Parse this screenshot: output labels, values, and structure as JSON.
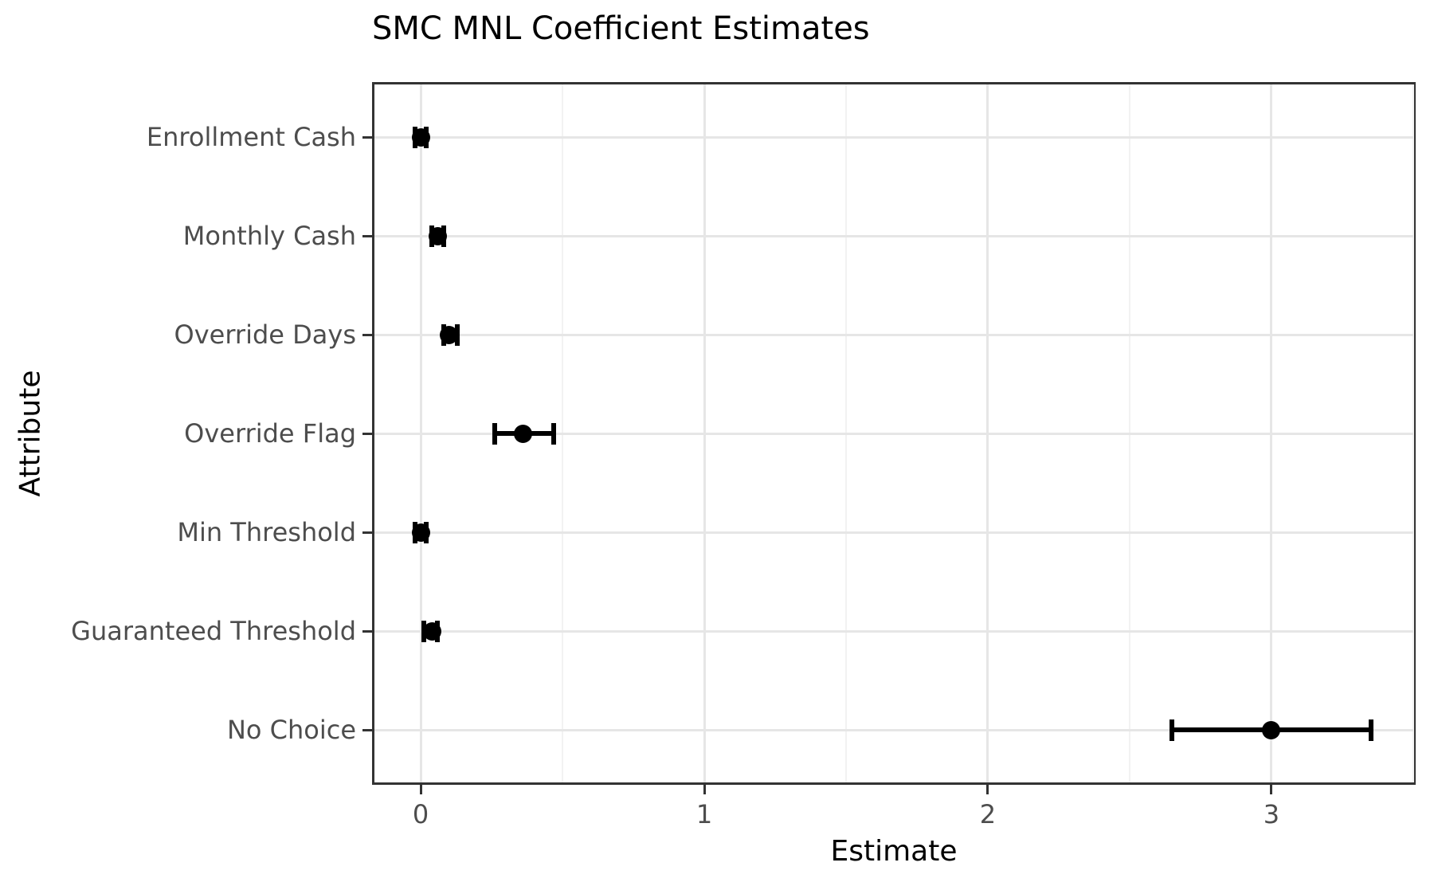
{
  "chart_data": {
    "type": "scatter",
    "subtype": "dot-whisker-coefficient-plot",
    "orientation": "horizontal",
    "title": "SMC MNL Coefficient Estimates",
    "xlabel": "Estimate",
    "ylabel": "Attribute",
    "categories": [
      "Enrollment Cash",
      "Monthly Cash",
      "Override Days",
      "Override Flag",
      "Min Threshold",
      "Guaranteed Threshold",
      "No Choice"
    ],
    "series": [
      {
        "name": "Estimate",
        "values": [
          0.0,
          0.06,
          0.1,
          0.36,
          0.0,
          0.04,
          3.0
        ],
        "ci_low": [
          -0.02,
          0.04,
          0.08,
          0.26,
          -0.02,
          0.01,
          2.65
        ],
        "ci_high": [
          0.02,
          0.08,
          0.13,
          0.47,
          0.02,
          0.06,
          3.35
        ]
      }
    ],
    "xlim": [
      -0.163,
      3.517
    ],
    "x_major_ticks": [
      0,
      1,
      2,
      3
    ],
    "x_tick_labels": [
      "0",
      "1",
      "2",
      "3"
    ],
    "x_minor_ticks": [
      0.5,
      1.5,
      2.5,
      3.5
    ],
    "grid": "major-and-minor-x, major-y, light-gray on white, black panel border",
    "legend": "none"
  },
  "colors": {
    "point": "#000000",
    "grid_major": "#e6e6e6",
    "grid_minor": "#f2f2f2",
    "panel_border": "#333333",
    "tick_text": "#4d4d4d",
    "title_text": "#000000",
    "background": "#ffffff"
  }
}
